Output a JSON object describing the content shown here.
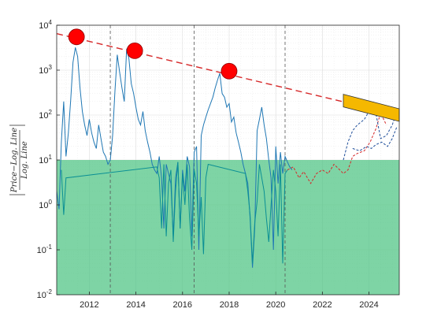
{
  "chart_data": {
    "type": "line",
    "title": "",
    "xlabel": "",
    "ylabel": {
      "numerator": "Price−Log. Line",
      "denominator": "Log. Line"
    },
    "y_scale": "log",
    "xlim": [
      2010.6,
      2025.3
    ],
    "ylim": [
      0.01,
      10000
    ],
    "x_ticks": [
      2012,
      2014,
      2016,
      2018,
      2020,
      2022,
      2024
    ],
    "y_ticks": [
      0.01,
      0.1,
      1,
      10,
      100,
      1000,
      10000
    ],
    "y_tick_labels": [
      {
        "base": "10",
        "exp": "-2"
      },
      {
        "base": "10",
        "exp": "-1"
      },
      {
        "base": "10",
        "exp": "0"
      },
      {
        "base": "10",
        "exp": "1"
      },
      {
        "base": "10",
        "exp": "2"
      },
      {
        "base": "10",
        "exp": "3"
      },
      {
        "base": "10",
        "exp": "4"
      }
    ],
    "grid": true,
    "green_zone": {
      "y_max": 10,
      "color": "#4cc482"
    },
    "halving_lines_x": [
      2012.9,
      2016.5,
      2020.4
    ],
    "peaks": [
      {
        "x": 2011.45,
        "y": 5500
      },
      {
        "x": 2013.95,
        "y": 2700
      },
      {
        "x": 2018.0,
        "y": 950
      }
    ],
    "peak_trend_line": {
      "x": [
        2010.6,
        2025.3
      ],
      "y": [
        6500,
        100
      ],
      "color": "#d62728"
    },
    "target_box": {
      "x": [
        2022.9,
        2025.3
      ],
      "y": [
        210,
        100
      ],
      "color": "#f5b800"
    },
    "series": [
      {
        "color": "#1f77b4",
        "x": [
          2010.6,
          2010.7,
          2010.8,
          2010.9,
          2011.0,
          2011.1,
          2011.2,
          2011.3,
          2011.4,
          2011.5,
          2011.6,
          2011.7,
          2011.8,
          2011.9,
          2012.0,
          2012.1,
          2012.2,
          2012.3,
          2012.4,
          2012.5,
          2012.6,
          2012.7,
          2012.8,
          2012.9,
          2013.0,
          2013.1,
          2013.2,
          2013.3,
          2013.4,
          2013.5,
          2013.6,
          2013.7,
          2013.8,
          2013.9,
          2014.0,
          2014.1,
          2014.2,
          2014.3,
          2014.4,
          2014.5,
          2014.6,
          2014.7,
          2014.8,
          2014.9,
          2015.0,
          2015.1,
          2015.2,
          2015.3,
          2015.4,
          2015.5,
          2015.6,
          2015.7,
          2015.8,
          2015.9,
          2016.0,
          2016.1,
          2016.2,
          2016.3,
          2016.4,
          2016.5,
          2016.6,
          2016.7,
          2016.8,
          2016.9,
          2017.0,
          2017.1,
          2017.2,
          2017.3,
          2017.4,
          2017.5,
          2017.6,
          2017.7,
          2017.8,
          2017.9,
          2018.0,
          2018.1,
          2018.2,
          2018.3,
          2018.4,
          2018.5,
          2018.6,
          2018.7,
          2018.8,
          2018.9,
          2019.0,
          2019.1,
          2019.2,
          2019.3,
          2019.4,
          2019.5,
          2019.6,
          2019.7,
          2019.8,
          2019.9,
          2020.0,
          2020.1,
          2020.2,
          2020.3,
          2020.4,
          2020.5,
          2020.6,
          2020.7
        ],
        "y": [
          2,
          0.8,
          25,
          200,
          12,
          40,
          220,
          1500,
          3200,
          2000,
          400,
          120,
          60,
          35,
          80,
          40,
          25,
          18,
          60,
          30,
          15,
          12,
          8,
          10,
          35,
          350,
          2200,
          900,
          400,
          200,
          3000,
          1800,
          500,
          300,
          150,
          80,
          60,
          120,
          45,
          25,
          15,
          8,
          6,
          5,
          12,
          4,
          0.3,
          8,
          5,
          3,
          0.2,
          4,
          9,
          0.3,
          6,
          2,
          12,
          7,
          0.2,
          15,
          20,
          0.1,
          35,
          60,
          90,
          130,
          180,
          250,
          400,
          600,
          850,
          300,
          250,
          150,
          180,
          70,
          90,
          40,
          25,
          15,
          8,
          5,
          3,
          0.5,
          0.04,
          0.3,
          45,
          80,
          150,
          60,
          30,
          10,
          4,
          0.1,
          20,
          3,
          15,
          5,
          12,
          9,
          7,
          6
        ]
      },
      {
        "color": "#0a8f94",
        "x": [
          2010.8,
          2010.9,
          2011.0,
          2014.9,
          2015.0,
          2015.1,
          2015.2,
          2015.3,
          2015.4,
          2015.5,
          2015.6,
          2015.7,
          2015.8,
          2015.9,
          2016.0,
          2016.1,
          2016.2,
          2016.3,
          2016.4,
          2016.5,
          2016.6,
          2016.7,
          2016.8,
          2016.9,
          2017.0,
          2017.1,
          2018.7,
          2018.8,
          2018.9,
          2019.0,
          2019.1,
          2019.2,
          2019.3,
          2019.4,
          2019.5,
          2019.6,
          2019.7,
          2019.8,
          2019.9,
          2020.0,
          2020.1,
          2020.2,
          2020.3,
          2020.4,
          2020.5
        ],
        "y": [
          6,
          0.6,
          4,
          7,
          4,
          0.3,
          8,
          0.2,
          3,
          6,
          0.15,
          2,
          9,
          0.3,
          5,
          1,
          8,
          0.5,
          0.1,
          6,
          3,
          0.2,
          1.5,
          0.08,
          4,
          8,
          5,
          2,
          0.6,
          0.05,
          0.4,
          1.2,
          8,
          4,
          2,
          0.5,
          0.15,
          1,
          6,
          2,
          0.2,
          8,
          0.05,
          5,
          6
        ]
      },
      {
        "color": "#d62728",
        "x": [
          2020.5,
          2020.75,
          2021.0,
          2021.2,
          2021.5,
          2021.75,
          2022.0,
          2022.25,
          2022.5,
          2022.75,
          2022.9,
          2023.1,
          2023.3,
          2023.5,
          2023.8,
          2024.05,
          2024.3,
          2024.5,
          2024.75
        ],
        "y": [
          6,
          7,
          4,
          5.5,
          3,
          5,
          6,
          5,
          8,
          6,
          5,
          6,
          12,
          14,
          16,
          25,
          50,
          110,
          60
        ]
      },
      {
        "color": "#1f4e9a",
        "x": [
          2022.9,
          2023.1,
          2023.3,
          2023.5,
          2023.8,
          2024.0,
          2024.25,
          2024.5,
          2024.75,
          2025.0,
          2025.2
        ],
        "y": [
          10,
          25,
          45,
          60,
          80,
          120,
          150,
          30,
          35,
          60,
          120
        ]
      },
      {
        "color": "#1f4e9a",
        "x": [
          2023.3,
          2023.6,
          2023.9,
          2024.1,
          2024.3,
          2024.55,
          2024.8,
          2025.0,
          2025.2
        ],
        "y": [
          18,
          16,
          20,
          18,
          22,
          25,
          20,
          30,
          55
        ]
      }
    ]
  }
}
